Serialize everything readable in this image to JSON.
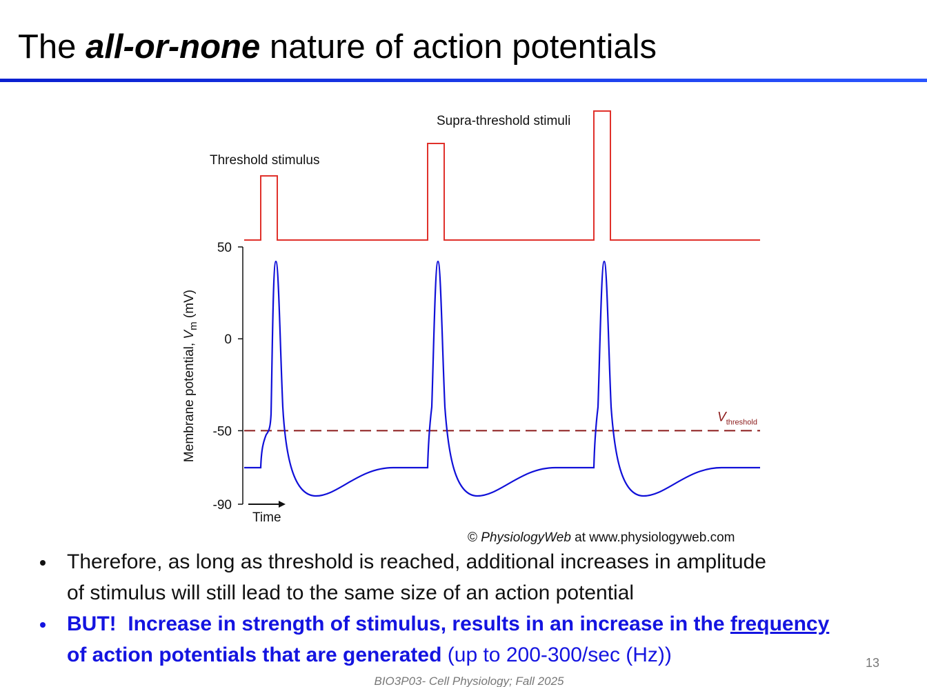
{
  "title": {
    "prefix": "The",
    "emphasis": "all-or-none",
    "suffix": "nature of action potentials"
  },
  "figure": {
    "stimulus_labels": [
      "Threshold stimulus",
      "Supra-threshold stimuli"
    ],
    "y_axis": {
      "label_start": "Membrane potential, ",
      "label_var": "V",
      "label_sub": "m",
      "label_end": " (mV)",
      "ylim": [
        -90,
        50
      ],
      "yticks": [
        50,
        0,
        -50,
        -90
      ]
    },
    "threshold": {
      "value": -50,
      "label_var": "V",
      "label_sub": "threshold"
    },
    "x_axis_label": "Time",
    "credit_mark": "©",
    "credit_brand": "PhysiologyWeb",
    "credit_rest": " at www.physiologyweb.com"
  },
  "bullets": [
    {
      "lines": [
        "Therefore, as long as threshold is reached, additional increases in amplitude",
        "of stimulus will still lead to the same size of an action potential"
      ]
    },
    {
      "bold_a": "BUT!  Increase in strength of stimulus, results in an increase in the ",
      "link": "frequency",
      "bold_b": "of action potentials that are generated",
      "rest": " (up to 200-300/sec (Hz))"
    }
  ],
  "page_number": 13,
  "footer": "BIO3P03- Cell Physiology; Fall 2025"
}
